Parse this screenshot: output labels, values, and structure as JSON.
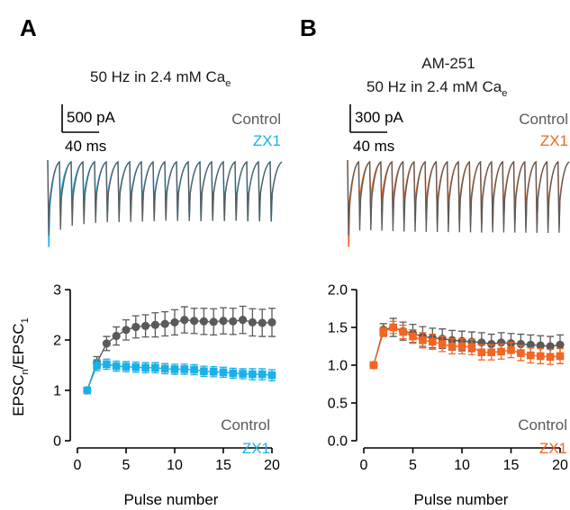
{
  "colors": {
    "control": "#5a5a5a",
    "zx1_A": "#1ab0e8",
    "zx1_B": "#f26522"
  },
  "chart_data": [
    {
      "type": "line",
      "panel": "A",
      "title": "50 Hz in 2.4 mM Ca",
      "title_subscript": "e",
      "scale_bar": {
        "amplitude": "500 pA",
        "time": "40 ms"
      },
      "trace_legend": [
        "Control",
        "ZX1"
      ],
      "xlabel": "Pulse number",
      "ylabel": "EPSC",
      "ylabel_sub_n": "n",
      "ylabel_sep": "/EPSC",
      "ylabel_sub_1": "1",
      "xlim": [
        0,
        20
      ],
      "ylim": [
        0,
        3
      ],
      "xticks": [
        0,
        5,
        10,
        15,
        20
      ],
      "yticks": [
        "0",
        "1",
        "2",
        "3"
      ],
      "ytick_values": [
        0,
        1,
        2,
        3
      ],
      "x": [
        1,
        2,
        3,
        4,
        5,
        6,
        7,
        8,
        9,
        10,
        11,
        12,
        13,
        14,
        15,
        16,
        17,
        18,
        19,
        20
      ],
      "series": [
        {
          "name": "Control",
          "marker": "circle",
          "values": [
            1.0,
            1.55,
            1.93,
            2.08,
            2.2,
            2.26,
            2.28,
            2.3,
            2.32,
            2.35,
            2.4,
            2.38,
            2.37,
            2.36,
            2.38,
            2.37,
            2.4,
            2.35,
            2.34,
            2.35
          ],
          "errors": [
            0.0,
            0.12,
            0.14,
            0.18,
            0.2,
            0.22,
            0.22,
            0.24,
            0.24,
            0.25,
            0.26,
            0.25,
            0.26,
            0.26,
            0.26,
            0.26,
            0.27,
            0.27,
            0.27,
            0.28
          ]
        },
        {
          "name": "ZX1",
          "marker": "square",
          "values": [
            1.0,
            1.5,
            1.52,
            1.48,
            1.47,
            1.46,
            1.45,
            1.45,
            1.43,
            1.42,
            1.42,
            1.41,
            1.38,
            1.37,
            1.36,
            1.34,
            1.33,
            1.32,
            1.32,
            1.3
          ],
          "errors": [
            0.0,
            0.11,
            0.1,
            0.1,
            0.1,
            0.1,
            0.1,
            0.1,
            0.1,
            0.1,
            0.1,
            0.1,
            0.1,
            0.1,
            0.1,
            0.1,
            0.1,
            0.11,
            0.11,
            0.11
          ]
        }
      ]
    },
    {
      "type": "line",
      "panel": "B",
      "title_line1": "AM-251",
      "title": "50 Hz in 2.4 mM Ca",
      "title_subscript": "e",
      "scale_bar": {
        "amplitude": "300 pA",
        "time": "40 ms"
      },
      "trace_legend": [
        "Control",
        "ZX1"
      ],
      "xlabel": "Pulse number",
      "ylabel": "",
      "xlim": [
        0,
        20
      ],
      "ylim": [
        0,
        2
      ],
      "xticks": [
        0,
        5,
        10,
        15,
        20
      ],
      "yticks": [
        "0.0",
        "0.5",
        "1.0",
        "1.5",
        "2.0"
      ],
      "ytick_values": [
        0,
        0.5,
        1.0,
        1.5,
        2.0
      ],
      "x": [
        1,
        2,
        3,
        4,
        5,
        6,
        7,
        8,
        9,
        10,
        11,
        12,
        13,
        14,
        15,
        16,
        17,
        18,
        19,
        20
      ],
      "series": [
        {
          "name": "Control",
          "marker": "circle",
          "values": [
            1.0,
            1.47,
            1.5,
            1.45,
            1.42,
            1.38,
            1.36,
            1.35,
            1.33,
            1.32,
            1.31,
            1.3,
            1.28,
            1.3,
            1.29,
            1.28,
            1.27,
            1.26,
            1.25,
            1.27
          ],
          "errors": [
            0.0,
            0.08,
            0.12,
            0.12,
            0.12,
            0.13,
            0.13,
            0.13,
            0.13,
            0.13,
            0.13,
            0.13,
            0.13,
            0.13,
            0.13,
            0.13,
            0.13,
            0.13,
            0.13,
            0.13
          ]
        },
        {
          "name": "ZX1",
          "marker": "square",
          "values": [
            1.0,
            1.44,
            1.5,
            1.44,
            1.38,
            1.33,
            1.31,
            1.28,
            1.25,
            1.25,
            1.24,
            1.17,
            1.17,
            1.18,
            1.2,
            1.16,
            1.13,
            1.12,
            1.11,
            1.12
          ],
          "errors": [
            0.0,
            0.06,
            0.08,
            0.09,
            0.09,
            0.1,
            0.1,
            0.1,
            0.1,
            0.1,
            0.1,
            0.1,
            0.1,
            0.1,
            0.1,
            0.1,
            0.1,
            0.1,
            0.1,
            0.1
          ]
        }
      ]
    }
  ]
}
